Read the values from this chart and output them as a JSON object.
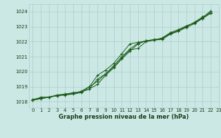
{
  "title": "Graphe pression niveau de la mer (hPa)",
  "bg_color": "#cce8e4",
  "grid_color": "#aacccc",
  "line_color": "#1a5c1a",
  "xlim": [
    -0.5,
    23.0
  ],
  "ylim": [
    1017.6,
    1024.5
  ],
  "xticks": [
    0,
    1,
    2,
    3,
    4,
    5,
    6,
    7,
    8,
    9,
    10,
    11,
    12,
    13,
    14,
    15,
    16,
    17,
    18,
    19,
    20,
    21,
    22,
    23
  ],
  "yticks": [
    1018,
    1019,
    1020,
    1021,
    1022,
    1023,
    1024
  ],
  "series": [
    {
      "x": [
        0,
        1,
        2,
        3,
        4,
        5,
        6,
        7,
        8,
        9,
        10,
        11,
        12,
        13,
        14,
        15,
        16,
        17,
        18,
        19,
        20,
        21,
        22
      ],
      "y": [
        1018.1,
        1018.3,
        1018.3,
        1018.4,
        1018.5,
        1018.6,
        1018.65,
        1018.85,
        1019.15,
        1019.75,
        1020.25,
        1020.85,
        1021.35,
        1021.85,
        1022.05,
        1022.15,
        1022.2,
        1022.55,
        1022.75,
        1023.05,
        1023.25,
        1023.6,
        1024.05
      ]
    },
    {
      "x": [
        0,
        1,
        2,
        3,
        4,
        5,
        6,
        7,
        8,
        9,
        10,
        11,
        12,
        13,
        14,
        15,
        16,
        17,
        18,
        19,
        20,
        21,
        22
      ],
      "y": [
        1018.1,
        1018.2,
        1018.3,
        1018.45,
        1018.5,
        1018.55,
        1018.65,
        1018.85,
        1019.5,
        1019.85,
        1020.4,
        1021.0,
        1021.5,
        1021.9,
        1022.05,
        1022.1,
        1022.2,
        1022.5,
        1022.7,
        1022.95,
        1023.2,
        1023.55,
        1023.9
      ]
    },
    {
      "x": [
        0,
        1,
        2,
        3,
        4,
        5,
        6,
        7,
        8,
        9,
        10,
        11,
        12,
        13,
        14,
        15,
        16,
        17,
        18,
        19,
        20,
        21,
        22
      ],
      "y": [
        1018.15,
        1018.25,
        1018.3,
        1018.4,
        1018.45,
        1018.55,
        1018.7,
        1019.0,
        1019.35,
        1019.85,
        1020.3,
        1020.9,
        1021.45,
        1021.55,
        1022.0,
        1022.1,
        1022.15,
        1022.5,
        1022.7,
        1023.0,
        1023.3,
        1023.65,
        1023.95
      ]
    },
    {
      "x": [
        0,
        1,
        2,
        3,
        4,
        5,
        6,
        7,
        8,
        9,
        10,
        11,
        12,
        13,
        14,
        15,
        16,
        17,
        18,
        19,
        20,
        21,
        22
      ],
      "y": [
        1018.1,
        1018.2,
        1018.3,
        1018.4,
        1018.45,
        1018.5,
        1018.6,
        1019.0,
        1019.75,
        1020.1,
        1020.55,
        1021.2,
        1021.85,
        1021.95,
        1022.05,
        1022.1,
        1022.25,
        1022.6,
        1022.8,
        1023.05,
        1023.25,
        1023.55,
        1023.9
      ]
    }
  ]
}
